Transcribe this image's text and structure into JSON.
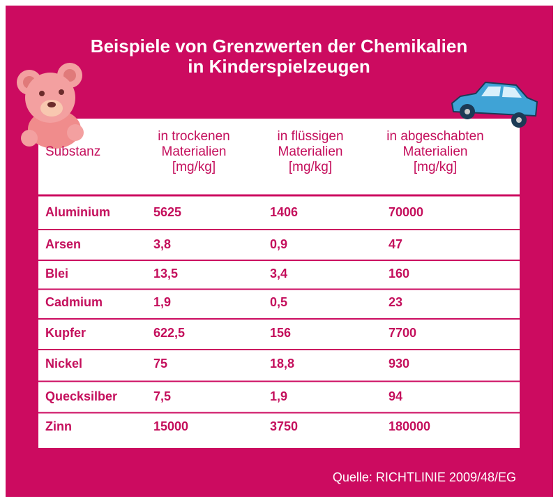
{
  "title": [
    "Beispiele von Grenzwerten der Chemikalien",
    "in Kinderspielzeugen"
  ],
  "table": {
    "header": [
      [
        "Substanz"
      ],
      [
        "in trockenen",
        "Materialien",
        "[mg/kg]"
      ],
      [
        "in flüssigen",
        "Materialien",
        "[mg/kg]"
      ],
      [
        "in abgeschabten",
        "Materialien",
        "[mg/kg]"
      ]
    ],
    "rows": [
      [
        "Aluminium",
        "5625",
        "1406",
        "70000"
      ],
      [
        "Arsen",
        "3,8",
        "0,9",
        "47"
      ],
      [
        "Blei",
        "13,5",
        "3,4",
        "160"
      ],
      [
        "Cadmium",
        "1,9",
        "0,5",
        "23"
      ],
      [
        "Kupfer",
        "622,5",
        "156",
        "7700"
      ],
      [
        "Nickel",
        "75",
        "18,8",
        "930"
      ],
      [
        "Quecksilber",
        "7,5",
        "1,9",
        "94"
      ],
      [
        "Zinn",
        "15000",
        "3750",
        "180000"
      ]
    ]
  },
  "source": "Quelle: RICHTLINIE 2009/48/EG"
}
